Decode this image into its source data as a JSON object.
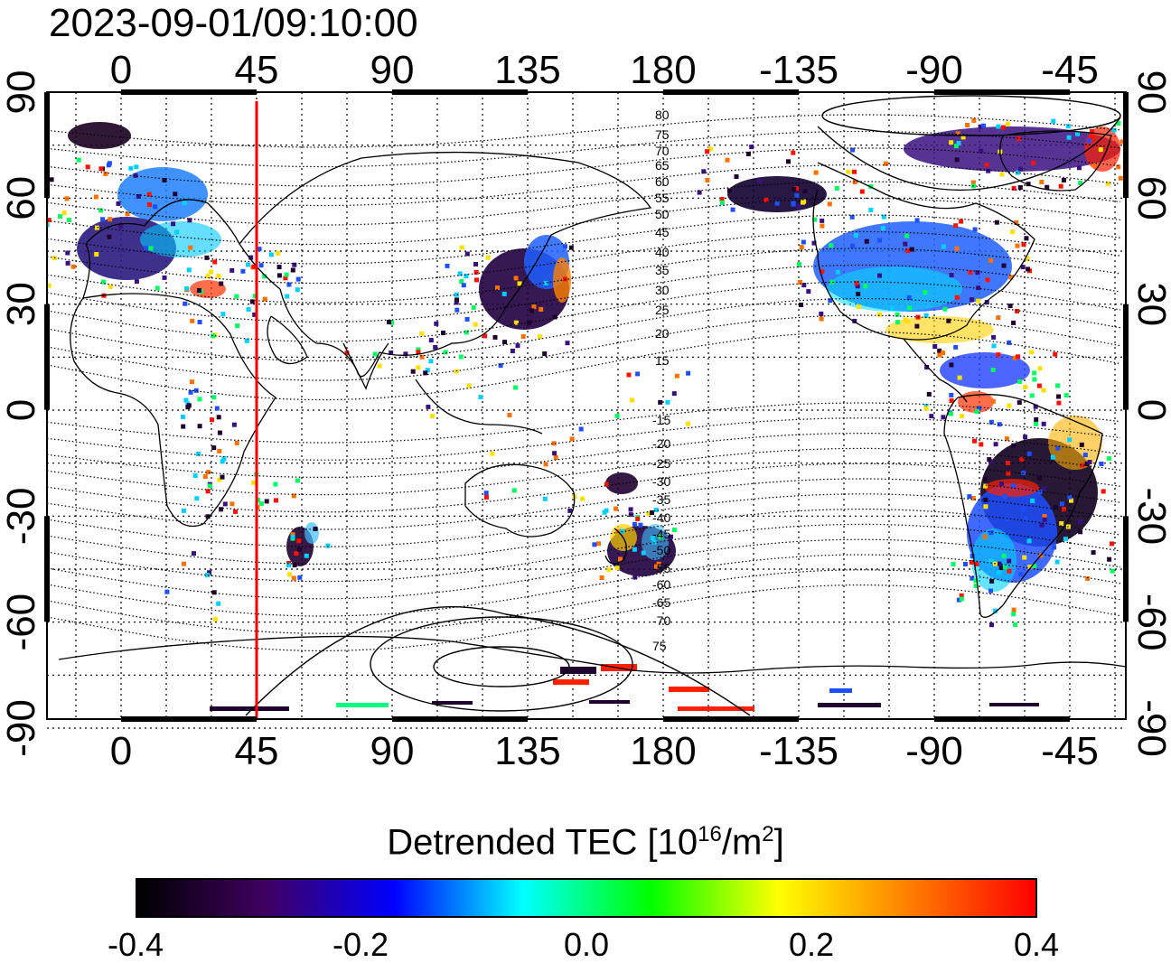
{
  "timestamp": "2023-09-01/09:10:00",
  "map": {
    "projection": "equirectangular",
    "lon_ticks": [
      "0",
      "45",
      "90",
      "135",
      "180",
      "-135",
      "-90",
      "-45"
    ],
    "lat_ticks": [
      "90",
      "60",
      "30",
      "0",
      "-30",
      "-60",
      "-90"
    ],
    "red_meridian_lon": 45,
    "contour_labels_north": [
      "80",
      "75",
      "70",
      "65",
      "60",
      "55",
      "50",
      "45",
      "40",
      "35",
      "30",
      "25",
      "20",
      "15"
    ],
    "contour_labels_south": [
      "-15",
      "-20",
      "-25",
      "-30",
      "-35",
      "-40",
      "-45",
      "-50",
      "-55",
      "-60",
      "-65",
      "-70",
      "75"
    ],
    "line_color": "#ff0000"
  },
  "colorbar": {
    "title_prefix": "Detrended TEC  [10",
    "title_exp1": "16",
    "title_mid": "/m",
    "title_exp2": "2",
    "title_suffix": "]",
    "ticks": [
      "-0.4",
      "-0.2",
      "0.0",
      "0.2",
      "0.4"
    ],
    "range": [
      -0.4,
      0.4
    ],
    "colors": [
      "#000000",
      "#400060",
      "#0000ff",
      "#00ffff",
      "#00ff00",
      "#ffff00",
      "#ff8000",
      "#ff0000"
    ]
  }
}
